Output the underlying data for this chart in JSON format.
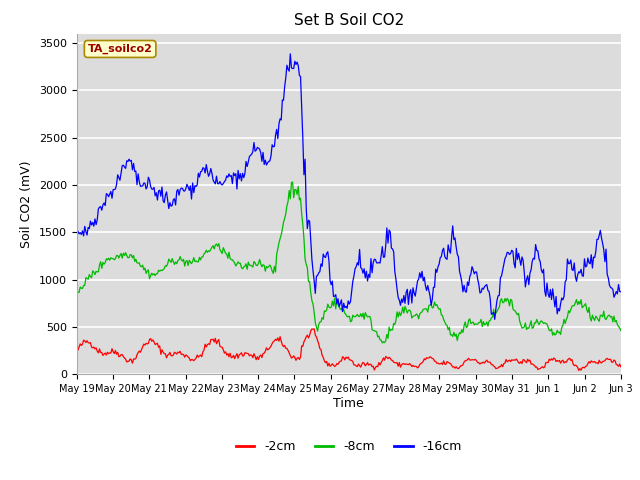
{
  "title": "Set B Soil CO2",
  "ylabel": "Soil CO2 (mV)",
  "xlabel": "Time",
  "annotation": "TA_soilco2",
  "legend_labels": [
    "-2cm",
    "-8cm",
    "-16cm"
  ],
  "legend_colors": [
    "#ff0000",
    "#00bb00",
    "#0000ff"
  ],
  "ylim": [
    0,
    3600
  ],
  "yticks": [
    0,
    500,
    1000,
    1500,
    2000,
    2500,
    3000,
    3500
  ],
  "fig_bg": "#ffffff",
  "plot_bg": "#dcdcdc",
  "grid_color": "#ffffff",
  "num_points": 480,
  "xtick_labels": [
    "May 19",
    "May 20",
    "May 21",
    "May 22",
    "May 23",
    "May 24",
    "May 25",
    "May 26",
    "May 27",
    "May 28",
    "May 29",
    "May 30",
    "May 31",
    "Jun 1",
    "Jun 2",
    "Jun 3"
  ]
}
